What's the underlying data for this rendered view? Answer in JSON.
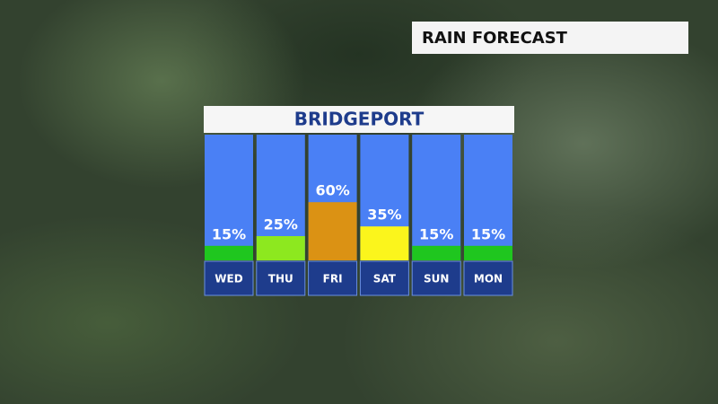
{
  "header": "RAIN FORECAST",
  "chart_data": {
    "type": "bar",
    "title": "BRIDGEPORT",
    "categories": [
      "WED",
      "THU",
      "FRI",
      "SAT",
      "SUN",
      "MON"
    ],
    "values": [
      15,
      25,
      60,
      35,
      15,
      15
    ],
    "value_labels": [
      "15%",
      "25%",
      "60%",
      "35%",
      "15%",
      "15%"
    ],
    "colors": [
      "#1fc61f",
      "#8de81f",
      "#db9214",
      "#fbf51c",
      "#1fc61f",
      "#1fc61f"
    ],
    "column_color": "#4a80f5",
    "label_color": "#1e3c8c"
  }
}
